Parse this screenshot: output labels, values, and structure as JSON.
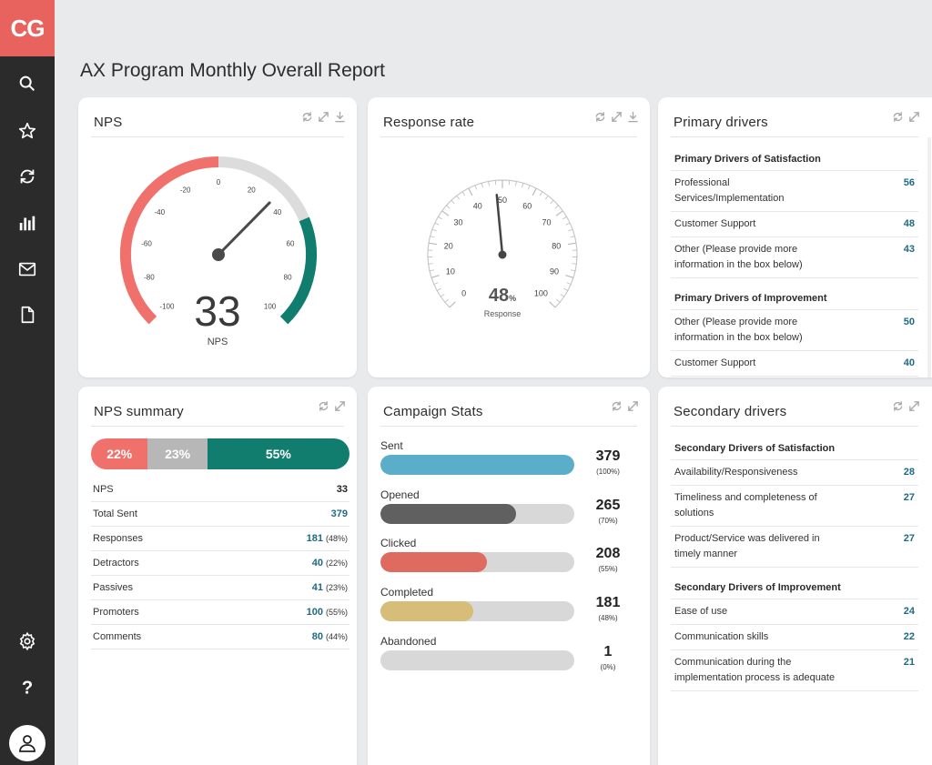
{
  "app": {
    "logo": "CG",
    "title": "AX Program Monthly Overall Report"
  },
  "sidebar": {
    "items": [
      {
        "icon": "search-icon"
      },
      {
        "icon": "star-icon"
      },
      {
        "icon": "refresh-icon"
      },
      {
        "icon": "bar-chart-icon"
      },
      {
        "icon": "mail-icon"
      },
      {
        "icon": "document-icon"
      },
      {
        "icon": "gear-icon"
      },
      {
        "icon": "help-icon"
      },
      {
        "icon": "user-icon"
      }
    ]
  },
  "colors": {
    "red": "#f0716c",
    "gray": "#b7b7b7",
    "teal": "#107d6f",
    "blue": "#5aaeca",
    "darkgray": "#606060",
    "coral": "#df6a5f",
    "gold": "#d8bd7a"
  },
  "nps": {
    "title": "NPS",
    "value": "33",
    "label": "NPS",
    "gauge_value": 33,
    "ticks": [
      "-100",
      "-80",
      "-60",
      "-40",
      "-20",
      "0",
      "20",
      "40",
      "60",
      "80",
      "100"
    ]
  },
  "response": {
    "title": "Response rate",
    "value": "48",
    "unit": "%",
    "label": "Response",
    "gauge_value": 48,
    "ticks": [
      "0",
      "10",
      "20",
      "30",
      "40",
      "50",
      "60",
      "70",
      "80",
      "90",
      "100"
    ]
  },
  "primary": {
    "title": "Primary drivers",
    "groups": [
      {
        "heading": "Primary Drivers of Satisfaction",
        "rows": [
          {
            "label": "Professional Services/Implementation",
            "value": "56"
          },
          {
            "label": "Customer Support",
            "value": "48"
          },
          {
            "label": "Other (Please provide more information in the box below)",
            "value": "43"
          }
        ]
      },
      {
        "heading": "Primary Drivers of Improvement",
        "rows": [
          {
            "label": "Other (Please provide more information in the box below)",
            "value": "50"
          },
          {
            "label": "Customer Support",
            "value": "40"
          }
        ]
      }
    ]
  },
  "summary": {
    "title": "NPS summary",
    "bar": [
      {
        "label": "22%",
        "value": 22
      },
      {
        "label": "23%",
        "value": 23
      },
      {
        "label": "55%",
        "value": 55
      }
    ],
    "rows": [
      {
        "label": "NPS",
        "value": "33",
        "pct": ""
      },
      {
        "label": "Total Sent",
        "value": "379",
        "pct": ""
      },
      {
        "label": "Responses",
        "value": "181",
        "pct": "(48%)"
      },
      {
        "label": "Detractors",
        "value": "40",
        "pct": "(22%)"
      },
      {
        "label": "Passives",
        "value": "41",
        "pct": "(23%)"
      },
      {
        "label": "Promoters",
        "value": "100",
        "pct": "(55%)"
      },
      {
        "label": "Comments",
        "value": "80",
        "pct": "(44%)"
      }
    ]
  },
  "campaign": {
    "title": "Campaign Stats",
    "items": [
      {
        "label": "Sent",
        "value": "379",
        "pct": "(100%)",
        "fraction": 1.0
      },
      {
        "label": "Opened",
        "value": "265",
        "pct": "(70%)",
        "fraction": 0.7
      },
      {
        "label": "Clicked",
        "value": "208",
        "pct": "(55%)",
        "fraction": 0.55
      },
      {
        "label": "Completed",
        "value": "181",
        "pct": "(48%)",
        "fraction": 0.48
      },
      {
        "label": "Abandoned",
        "value": "1",
        "pct": "(0%)",
        "fraction": 0.0
      }
    ]
  },
  "secondary": {
    "title": "Secondary drivers",
    "groups": [
      {
        "heading": "Secondary Drivers of Satisfaction",
        "rows": [
          {
            "label": "Availability/Responsiveness",
            "value": "28"
          },
          {
            "label": "Timeliness and completeness of solutions",
            "value": "27"
          },
          {
            "label": "Product/Service was delivered in timely manner",
            "value": "27"
          }
        ]
      },
      {
        "heading": "Secondary Drivers of Improvement",
        "rows": [
          {
            "label": "Ease of use",
            "value": "24"
          },
          {
            "label": "Communication skills",
            "value": "22"
          },
          {
            "label": "Communication during the implementation process is adequate",
            "value": "21"
          }
        ]
      }
    ]
  }
}
